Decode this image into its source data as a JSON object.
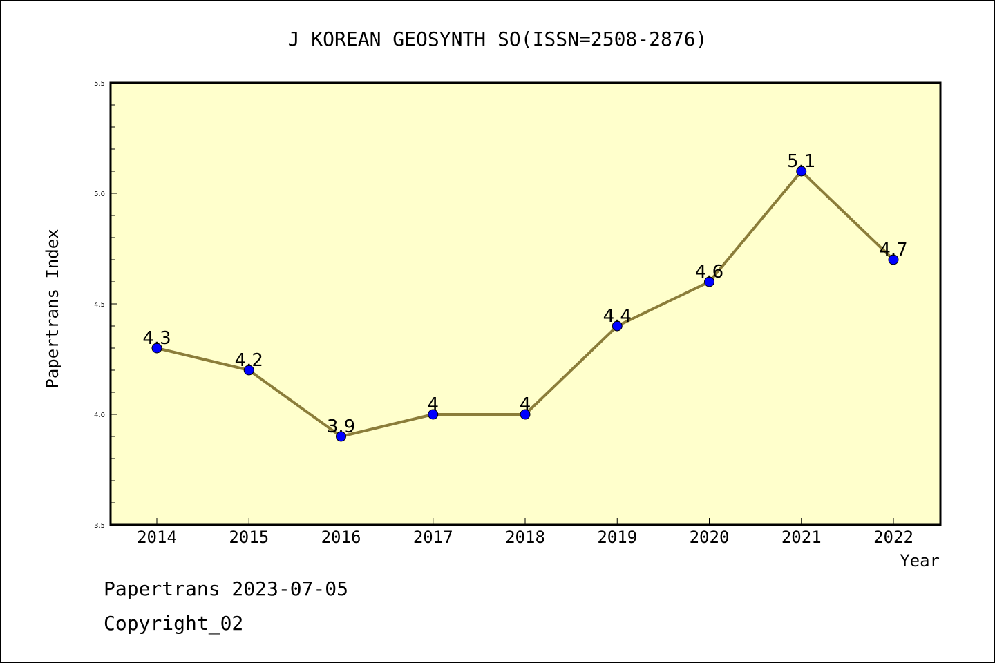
{
  "footer": {
    "line1": "Papertrans 2023-07-05",
    "line2": "Copyright_02"
  },
  "chart_data": {
    "type": "line",
    "title": "J KOREAN GEOSYNTH SO(ISSN=2508-2876)",
    "xlabel": "Year",
    "ylabel": "Papertrans Index",
    "categories": [
      "2014",
      "2015",
      "2016",
      "2017",
      "2018",
      "2019",
      "2020",
      "2021",
      "2022"
    ],
    "values": [
      4.3,
      4.2,
      3.9,
      4.0,
      4.0,
      4.4,
      4.6,
      5.1,
      4.7
    ],
    "data_labels": [
      "4.3",
      "4.2",
      "3.9",
      "4",
      "4",
      "4.4",
      "4.6",
      "5.1",
      "4.7"
    ],
    "ylim": [
      3.5,
      5.5
    ],
    "yticks": [
      "3.5",
      "4.0",
      "4.5",
      "5.0",
      "5.5"
    ],
    "grid": false,
    "colors": {
      "plot_background": "#ffffcc",
      "line": "#8b7d3a",
      "marker": "#0000ff"
    }
  }
}
